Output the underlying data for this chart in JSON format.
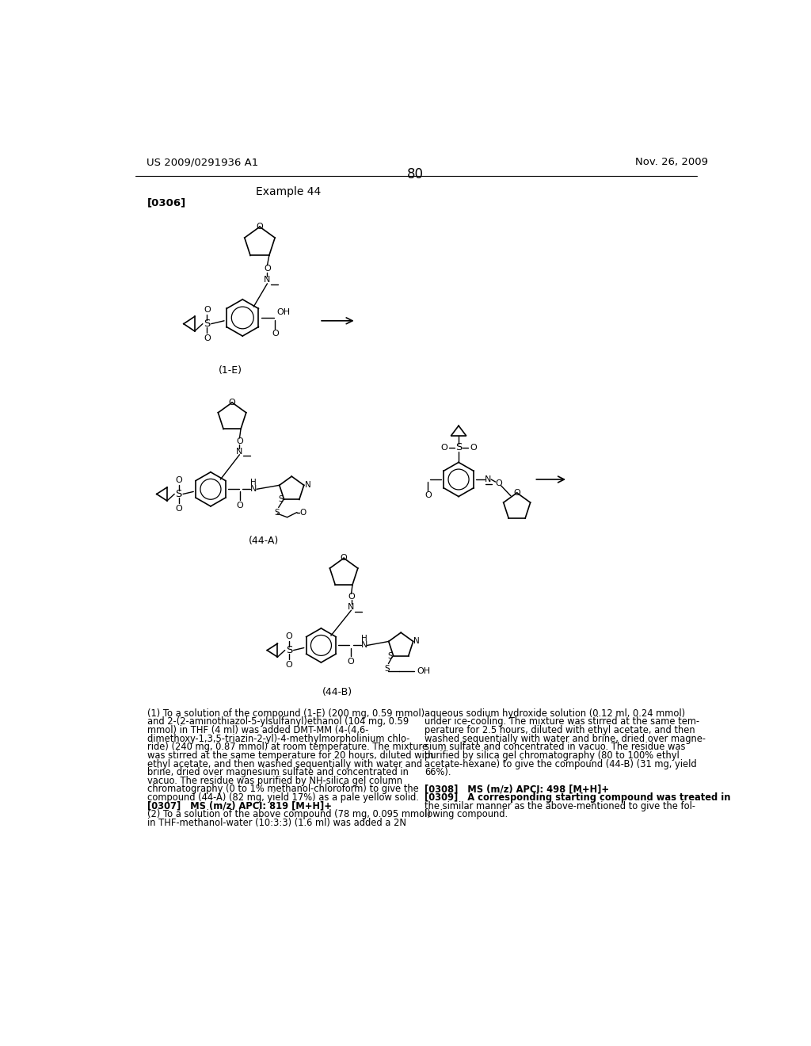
{
  "page_number": "80",
  "patent_number": "US 2009/0291936 A1",
  "patent_date": "Nov. 26, 2009",
  "example_label": "Example 44",
  "paragraph_label": "[0306]",
  "compound_1E_label": "(1-E)",
  "compound_44A_label": "(44-A)",
  "compound_44B_label": "(44-B)",
  "col1_lines": [
    "(1) To a solution of the compound (1-E) (200 mg, 0.59 mmol)",
    "and 2-(2-aminothiazol-5-ylsulfanyl)ethanol (104 mg, 0.59",
    "mmol) in THF (4 ml) was added DMT-MM (4-(4,6-",
    "dimethoxy-1,3,5-triazin-2-yl)-4-methylmorpholinium chlo-",
    "ride) (240 mg, 0.87 mmol) at room temperature. The mixture",
    "was stirred at the same temperature for 20 hours, diluted with",
    "ethyl acetate, and then washed sequentially with water and",
    "brine, dried over magnesium sulfate and concentrated in",
    "vacuo. The residue was purified by NH-silica gel column",
    "chromatography (0 to 1% methanol-chloroform) to give the",
    "compound (44-A) (82 mg, yield 17%) as a pale yellow solid.",
    "[0307]   MS (m/z) APCI: 819 [M+H]+",
    "(2) To a solution of the above compound (78 mg, 0.095 mmol)",
    "in THF-methanol-water (10:3:3) (1.6 ml) was added a 2N"
  ],
  "col1_bold": [
    11
  ],
  "col2_lines": [
    "aqueous sodium hydroxide solution (0.12 ml, 0.24 mmol)",
    "under ice-cooling. The mixture was stirred at the same tem-",
    "perature for 2.5 hours, diluted with ethyl acetate, and then",
    "washed sequentially with water and brine, dried over magne-",
    "sium sulfate and concentrated in vacuo. The residue was",
    "purified by silica gel chromatography (80 to 100% ethyl",
    "acetate-hexane) to give the compound (44-B) (31 mg, yield",
    "66%).",
    "",
    "[0308]   MS (m/z) APCI: 498 [M+H]+",
    "[0309]   A corresponding starting compound was treated in",
    "the similar manner as the above-mentioned to give the fol-",
    "lowing compound."
  ],
  "col2_bold": [
    9,
    10
  ],
  "background_color": "#ffffff",
  "text_color": "#000000"
}
